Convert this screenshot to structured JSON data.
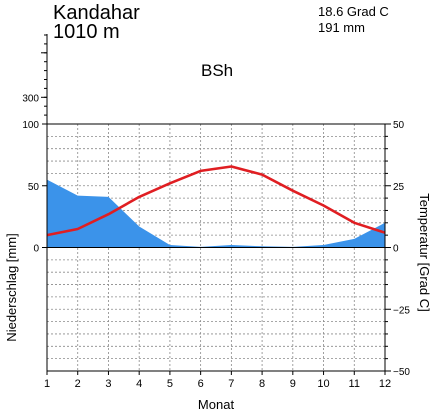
{
  "header": {
    "station": "Kandahar",
    "elevation": "1010  m",
    "mean_temperature": "18.6  Grad C",
    "annual_precipitation": "191 mm",
    "climate_class": "BSh"
  },
  "chart_data": {
    "type": "line",
    "title": "",
    "xlabel": "Monat",
    "ylabel_left": "Niederschlag [mm]",
    "ylabel_right": "Temperatur  [Grad C]",
    "x": [
      1,
      2,
      3,
      4,
      5,
      6,
      7,
      8,
      9,
      10,
      11,
      12
    ],
    "x_tick_labels": [
      "1",
      "2",
      "3",
      "4",
      "5",
      "6",
      "7",
      "8",
      "9",
      "10",
      "11",
      "12"
    ],
    "left_ticks": [
      "0",
      "50",
      "100",
      "300"
    ],
    "right_ticks": [
      "50",
      "25",
      "0",
      "−25",
      "−50"
    ],
    "precip_ylim": [
      -100,
      100
    ],
    "temp_ylim": [
      -50,
      50
    ],
    "grid": true,
    "series": [
      {
        "name": "Niederschlag",
        "axis": "left",
        "type": "area",
        "values": [
          55,
          42,
          41,
          17,
          2,
          0.5,
          2,
          1,
          0.5,
          2,
          7,
          20
        ],
        "color": "#3b93ea"
      },
      {
        "name": "Temperatur",
        "axis": "right",
        "type": "line",
        "values": [
          5,
          7.5,
          13.5,
          20.5,
          26,
          31,
          32.8,
          29.5,
          23,
          17,
          10,
          6
        ],
        "color": "#e01e22"
      }
    ]
  }
}
